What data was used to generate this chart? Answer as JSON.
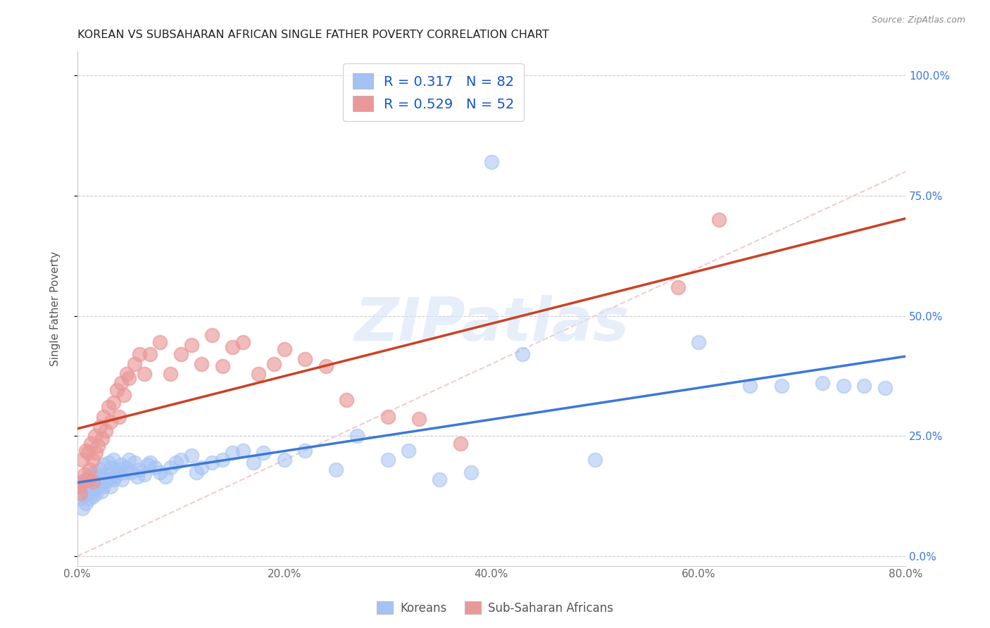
{
  "title": "KOREAN VS SUBSAHARAN AFRICAN SINGLE FATHER POVERTY CORRELATION CHART",
  "source": "Source: ZipAtlas.com",
  "xlabel_ticks": [
    "0.0%",
    "20.0%",
    "40.0%",
    "60.0%",
    "80.0%"
  ],
  "right_ylabel_ticks": [
    "0.0%",
    "25.0%",
    "50.0%",
    "75.0%",
    "100.0%"
  ],
  "xlim": [
    0.0,
    0.8
  ],
  "ylim": [
    -0.02,
    1.05
  ],
  "ylabel": "Single Father Poverty",
  "korean_R": 0.317,
  "korean_N": 82,
  "african_R": 0.529,
  "african_N": 52,
  "korean_color": "#a4c2f4",
  "african_color": "#ea9999",
  "korean_line_color": "#3c78d8",
  "african_line_color": "#cc4125",
  "diagonal_color": "#f4cccc",
  "background_color": "#ffffff",
  "grid_color": "#cccccc",
  "watermark": "ZIPatlas",
  "legend_label_color": "#1155cc"
}
